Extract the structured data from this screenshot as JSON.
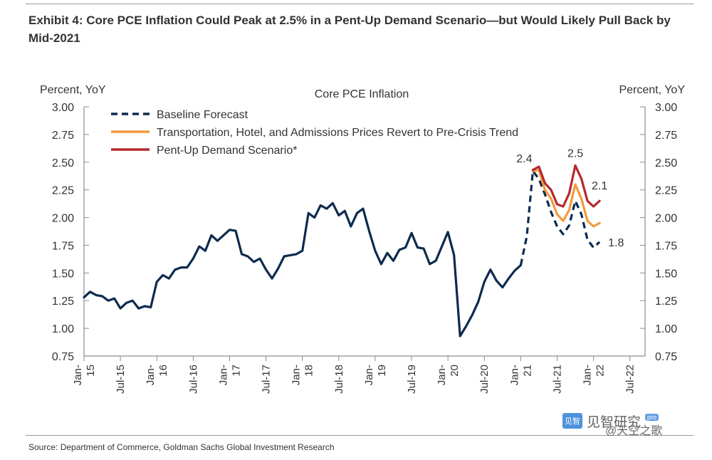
{
  "header": {
    "title": "Exhibit 4: Core PCE Inflation Could Peak at 2.5% in a Pent-Up Demand Scenario—but Would Likely Pull Back by Mid-2021"
  },
  "footer": {
    "source": "Source: Department of Commerce, Goldman Sachs Global Investment Research"
  },
  "watermark": {
    "badge": "见智",
    "text": "见智研究",
    "pro": "pro",
    "handle": "@天空之歌"
  },
  "colors": {
    "baseline": "#0d2b4e",
    "transport": "#f29a3d",
    "pentup": "#b5282e",
    "axis": "#8c8c8c"
  },
  "chart_data": {
    "type": "line",
    "title": "Core PCE Inflation",
    "ylabel_left": "Percent, YoY",
    "ylabel_right": "Percent, YoY",
    "ylim": [
      0.75,
      3.0
    ],
    "yticks": [
      "0.75",
      "1.00",
      "1.25",
      "1.50",
      "1.75",
      "2.00",
      "2.25",
      "2.50",
      "2.75",
      "3.00"
    ],
    "x_ticks": [
      {
        "month": 0,
        "lines": [
          "Jan-",
          "15"
        ]
      },
      {
        "month": 6,
        "lines": [
          "Jul-15"
        ]
      },
      {
        "month": 12,
        "lines": [
          "Jan-",
          "16"
        ]
      },
      {
        "month": 18,
        "lines": [
          "Jul-16"
        ]
      },
      {
        "month": 24,
        "lines": [
          "Jan-",
          "17"
        ]
      },
      {
        "month": 30,
        "lines": [
          "Jul-17"
        ]
      },
      {
        "month": 36,
        "lines": [
          "Jan-",
          "18"
        ]
      },
      {
        "month": 42,
        "lines": [
          "Jul-18"
        ]
      },
      {
        "month": 48,
        "lines": [
          "Jan-",
          "19"
        ]
      },
      {
        "month": 54,
        "lines": [
          "Jul-19"
        ]
      },
      {
        "month": 60,
        "lines": [
          "Jan-",
          "20"
        ]
      },
      {
        "month": 66,
        "lines": [
          "Jul-20"
        ]
      },
      {
        "month": 72,
        "lines": [
          "Jan-",
          "21"
        ]
      },
      {
        "month": 78,
        "lines": [
          "Jul-21"
        ]
      },
      {
        "month": 84,
        "lines": [
          "Jan-",
          "22"
        ]
      },
      {
        "month": 90,
        "lines": [
          "Jul-22"
        ]
      }
    ],
    "legend": [
      "Baseline Forecast",
      "Transportation, Hotel, and Admissions Prices Revert to Pre-Crisis Trend",
      "Pent-Up Demand Scenario*"
    ],
    "series": [
      {
        "name": "Historical",
        "style": "solid",
        "color": "#0d2b4e",
        "start_month": 0,
        "values": [
          1.28,
          1.33,
          1.3,
          1.29,
          1.25,
          1.27,
          1.18,
          1.23,
          1.25,
          1.18,
          1.2,
          1.19,
          1.42,
          1.48,
          1.45,
          1.53,
          1.55,
          1.55,
          1.63,
          1.74,
          1.7,
          1.84,
          1.79,
          1.84,
          1.89,
          1.88,
          1.67,
          1.65,
          1.6,
          1.63,
          1.53,
          1.45,
          1.54,
          1.65,
          1.66,
          1.67,
          1.7,
          2.04,
          2.0,
          2.11,
          2.08,
          2.13,
          2.02,
          2.06,
          1.92,
          2.04,
          2.08,
          1.88,
          1.7,
          1.58,
          1.68,
          1.61,
          1.71,
          1.73,
          1.86,
          1.73,
          1.72,
          1.58,
          1.61,
          1.74,
          1.87,
          1.66,
          0.93,
          1.02,
          1.12,
          1.24,
          1.42,
          1.53,
          1.43,
          1.37,
          1.45,
          1.52,
          1.57
        ]
      },
      {
        "name": "Baseline Forecast",
        "style": "dashed",
        "color": "#0d2b4e",
        "start_month": 72,
        "values": [
          1.57,
          1.83,
          2.42,
          2.35,
          2.21,
          2.05,
          1.92,
          1.85,
          1.93,
          2.15,
          2.03,
          1.8,
          1.73,
          1.78
        ]
      },
      {
        "name": "Transportation, Hotel, and Admissions Prices Revert to Pre-Crisis Trend",
        "style": "solid",
        "color": "#f29a3d",
        "start_month": 74,
        "values": [
          2.42,
          2.43,
          2.25,
          2.17,
          2.03,
          1.97,
          2.07,
          2.3,
          2.17,
          1.97,
          1.92,
          1.95
        ]
      },
      {
        "name": "Pent-Up Demand Scenario*",
        "style": "solid",
        "color": "#b5282e",
        "start_month": 74,
        "values": [
          2.43,
          2.46,
          2.31,
          2.25,
          2.12,
          2.1,
          2.22,
          2.47,
          2.35,
          2.15,
          2.1,
          2.15
        ]
      }
    ],
    "annotations": [
      {
        "text": "2.4",
        "month": 74,
        "value": 2.42
      },
      {
        "text": "2.5",
        "month": 81,
        "value": 2.47
      },
      {
        "text": "2.1",
        "month": 85,
        "value": 2.15
      },
      {
        "text": "1.8",
        "month": 85,
        "value": 1.78
      }
    ]
  }
}
